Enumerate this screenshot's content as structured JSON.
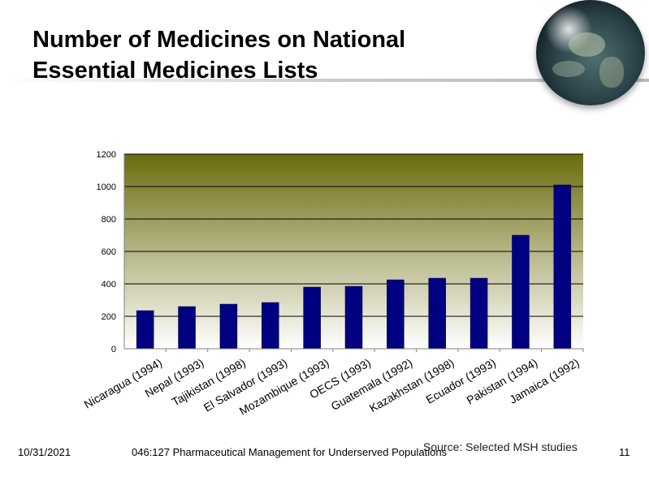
{
  "slide": {
    "title": "Number of Medicines on National Essential Medicines Lists",
    "source": "Source: Selected MSH studies",
    "date": "10/31/2021",
    "course": "046:127 Pharmaceutical Management for Underserved Populations",
    "page_number": "11"
  },
  "chart_data": {
    "type": "bar",
    "title": "",
    "xlabel": "",
    "ylabel": "",
    "categories": [
      "Nicaragua (1994)",
      "Nepal (1993)",
      "Tajikistan (1998)",
      "El Salvador (1993)",
      "Mozambique (1993)",
      "OECS (1993)",
      "Guatemala (1992)",
      "Kazakhstan (1998)",
      "Ecuador (1993)",
      "Pakistan (1994)",
      "Jamaica (1992)"
    ],
    "values": [
      235,
      260,
      275,
      285,
      380,
      385,
      425,
      435,
      435,
      700,
      1010
    ],
    "ylim": [
      0,
      1200
    ],
    "yticks": [
      "0",
      "200",
      "400",
      "600",
      "800",
      "1000",
      "1200"
    ],
    "grid": true,
    "legend": "none",
    "colors": {
      "bar": "#000080",
      "plot_top": "#6b6b0e",
      "plot_bottom": "#ffffff",
      "gridline": "#000000"
    }
  }
}
